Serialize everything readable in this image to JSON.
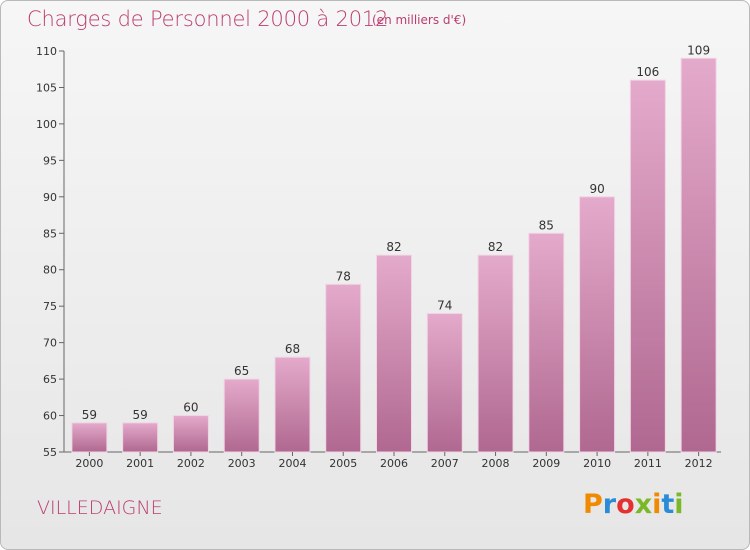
{
  "header": {
    "title": "Charges de Personnel 2000 à 2012",
    "subtitle": "(en milliers d'€)"
  },
  "footer": {
    "city": "VILLEDAIGNE",
    "logo": "Proxiti",
    "logo_colors": [
      "#f08a00",
      "#2a8bd6",
      "#e4312f",
      "#7ab828",
      "#f08a00",
      "#2a8bd6",
      "#7ab828"
    ]
  },
  "colors": {
    "title": "#bb3d6f",
    "bar_top": "#e4aacb",
    "bar_bottom": "#b06890",
    "bar_edge": "#f2d4e4"
  },
  "chart_data": {
    "type": "bar",
    "title": "Charges de Personnel 2000 à 2012",
    "subtitle": "(en milliers d'€)",
    "categories": [
      "2000",
      "2001",
      "2002",
      "2003",
      "2004",
      "2005",
      "2006",
      "2007",
      "2008",
      "2009",
      "2010",
      "2011",
      "2012"
    ],
    "values": [
      59,
      59,
      60,
      65,
      68,
      78,
      82,
      74,
      82,
      85,
      90,
      106,
      109
    ],
    "ylim": [
      55,
      110
    ],
    "yticks": [
      55,
      60,
      65,
      70,
      75,
      80,
      85,
      90,
      95,
      100,
      105,
      110
    ],
    "data_labels": true,
    "grid": false
  }
}
